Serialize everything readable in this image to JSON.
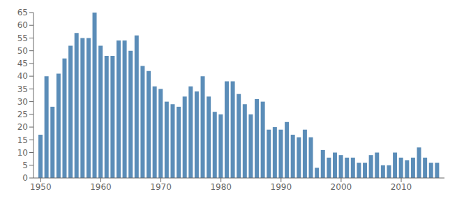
{
  "chart_data": {
    "type": "bar",
    "x": [
      1950,
      1951,
      1952,
      1953,
      1954,
      1955,
      1956,
      1957,
      1958,
      1959,
      1960,
      1961,
      1962,
      1963,
      1964,
      1965,
      1966,
      1967,
      1968,
      1969,
      1970,
      1971,
      1972,
      1973,
      1974,
      1975,
      1976,
      1977,
      1978,
      1979,
      1980,
      1981,
      1982,
      1983,
      1984,
      1985,
      1986,
      1987,
      1988,
      1989,
      1990,
      1991,
      1992,
      1993,
      1994,
      1995,
      1996,
      1997,
      1998,
      1999,
      2000,
      2001,
      2002,
      2003,
      2004,
      2005,
      2006,
      2007,
      2008,
      2009,
      2010,
      2011,
      2012,
      2013,
      2014,
      2015,
      2016
    ],
    "values": [
      17,
      40,
      28,
      41,
      47,
      52,
      57,
      55,
      55,
      65,
      52,
      48,
      48,
      54,
      54,
      50,
      56,
      44,
      42,
      36,
      35,
      30,
      29,
      28,
      32,
      36,
      34,
      40,
      32,
      26,
      25,
      38,
      38,
      33,
      29,
      25,
      31,
      30,
      19,
      20,
      19,
      22,
      17,
      16,
      19,
      16,
      4,
      11,
      8,
      10,
      9,
      8,
      8,
      6,
      6,
      9,
      10,
      5,
      5,
      10,
      8,
      7,
      8,
      12,
      8,
      6,
      6
    ],
    "color": "#5b8db8",
    "xlim": [
      1948.8,
      2017.2
    ],
    "xticks": [
      1950,
      1960,
      1970,
      1980,
      1990,
      2000,
      2010
    ],
    "ylim": [
      0,
      65
    ],
    "yticks": [
      0,
      5,
      10,
      15,
      20,
      25,
      30,
      35,
      40,
      45,
      50,
      55,
      60,
      65
    ],
    "grid": false
  }
}
